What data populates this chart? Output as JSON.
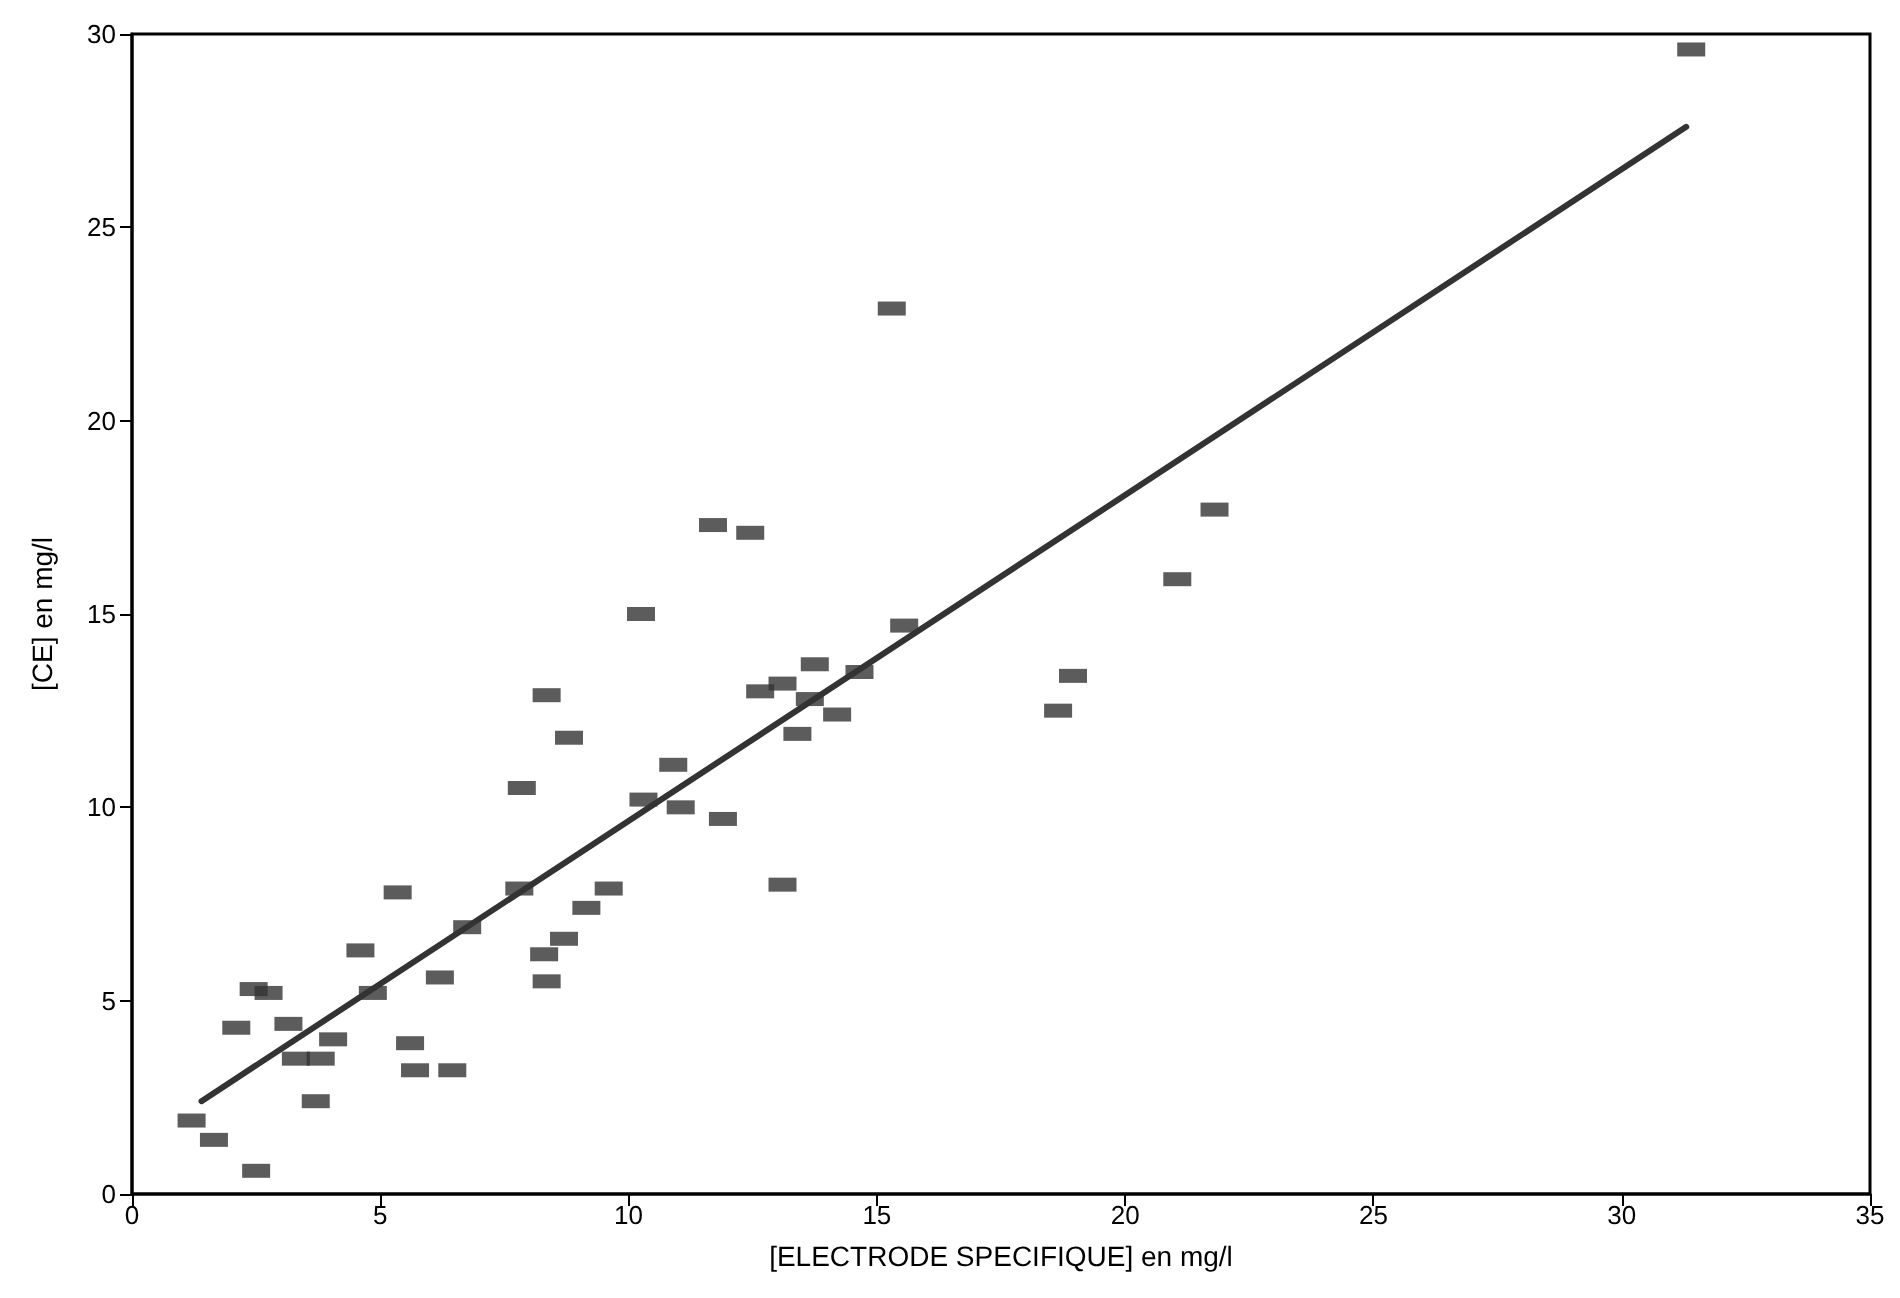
{
  "chart_data": {
    "type": "scatter",
    "xlabel": "[ELECTRODE SPECIFIQUE] en mg/l",
    "ylabel": "[CE] en mg/l",
    "xlim": [
      0,
      35
    ],
    "xticks": [
      0,
      5,
      10,
      15,
      20,
      25,
      30,
      35
    ],
    "ylim": [
      0,
      30
    ],
    "yticks": [
      0,
      5,
      10,
      15,
      20,
      25,
      30
    ],
    "grid": false,
    "marker": "square",
    "series": [
      {
        "color": "#333333",
        "x": [
          1.2,
          1.65,
          2.5,
          2.1,
          2.45,
          2.75,
          3.15,
          3.3,
          3.8,
          4.05,
          3.7,
          4.6,
          5.35,
          4.85,
          5.6,
          5.7,
          6.45,
          6.2,
          6.75,
          7.8,
          8.3,
          8.35,
          11.7,
          12.45,
          10.25,
          8.35,
          8.8,
          7.85,
          10.9,
          10.3,
          11.05,
          11.9,
          12.65,
          13.1,
          13.75,
          14.65,
          14.2,
          13.4,
          13.65,
          15.55,
          13.1,
          9.6,
          9.15,
          8.7,
          15.3,
          21.8,
          21.05,
          18.95,
          18.65,
          31.4
        ],
        "values": [
          1.9,
          1.4,
          0.6,
          4.3,
          5.3,
          5.2,
          4.4,
          3.5,
          3.5,
          4.0,
          2.4,
          6.3,
          7.8,
          5.2,
          3.9,
          3.2,
          3.2,
          5.6,
          6.9,
          7.9,
          6.2,
          5.5,
          17.3,
          17.1,
          15.0,
          12.9,
          11.8,
          10.5,
          11.1,
          10.2,
          10.0,
          9.7,
          13.0,
          13.2,
          13.7,
          13.5,
          12.4,
          11.9,
          12.8,
          14.7,
          8.0,
          7.9,
          7.4,
          6.6,
          22.9,
          17.7,
          15.9,
          13.4,
          12.5,
          29.6
        ]
      },
      {
        "type": "line",
        "color": "#333333",
        "marker": "none",
        "line_style": "solid",
        "x": [
          1.4,
          31.3
        ],
        "values": [
          2.4,
          27.6
        ]
      }
    ]
  }
}
